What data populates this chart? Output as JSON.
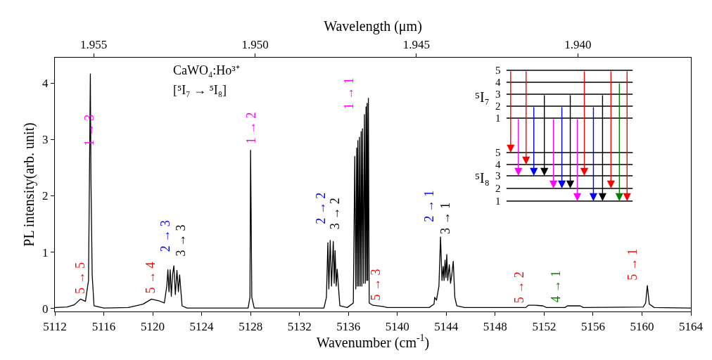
{
  "chart_data": {
    "type": "line",
    "xlabel": "Wavenumber (cm$^{-1}$)",
    "ylabel": "PL intensity(arb. unit)",
    "x2label": "Wavelength (μm)",
    "xlim": [
      5112,
      5164
    ],
    "xticks": [
      5112,
      5116,
      5120,
      5124,
      5128,
      5132,
      5136,
      5140,
      5144,
      5148,
      5152,
      5156,
      5160,
      5164
    ],
    "ylim": [
      -0.05,
      4.45
    ],
    "yticks": [
      0,
      1,
      2,
      3,
      4
    ],
    "x2lim": [
      1.9562,
      1.9365
    ],
    "x2ticks": [
      {
        "value": 1.955,
        "label": "1.955"
      },
      {
        "value": 1.95,
        "label": "1.950"
      },
      {
        "value": 1.945,
        "label": "1.945"
      },
      {
        "value": 1.94,
        "label": "1.940"
      }
    ],
    "marker": "none",
    "line_style": "solid",
    "series": [
      {
        "color": "#000000",
        "x": [
          5112,
          5113,
          5113.6,
          5114.1,
          5114.5,
          5114.75,
          5114.85,
          5114.9,
          5114.95,
          5115.05,
          5115.2,
          5116,
          5118,
          5119.2,
          5119.9,
          5120.5,
          5120.95,
          5121.15,
          5121.24,
          5121.33,
          5121.43,
          5121.52,
          5121.62,
          5121.73,
          5121.85,
          5121.98,
          5122.1,
          5122.2,
          5122.4,
          5122.8,
          5127.8,
          5127.95,
          5128.0,
          5128.05,
          5128.1,
          5128.3,
          5134.0,
          5134.2,
          5134.32,
          5134.4,
          5134.51,
          5134.62,
          5134.76,
          5134.84,
          5134.91,
          5135.0,
          5135.08,
          5135.3,
          5135.9,
          5136.4,
          5136.52,
          5136.6,
          5136.68,
          5136.72,
          5136.77,
          5136.84,
          5136.9,
          5136.97,
          5137.04,
          5137.1,
          5137.15,
          5137.23,
          5137.31,
          5137.38,
          5137.44,
          5137.49,
          5137.53,
          5137.58,
          5137.63,
          5137.7,
          5138.0,
          5138.8,
          5139.2,
          5142.6,
          5143.0,
          5143.05,
          5143.2,
          5143.4,
          5143.53,
          5143.65,
          5143.75,
          5143.82,
          5143.9,
          5143.97,
          5144.04,
          5144.12,
          5144.25,
          5144.35,
          5144.45,
          5144.57,
          5144.7,
          5144.86,
          5145.5,
          5150.5,
          5150.7,
          5151.3,
          5151.9,
          5152.2,
          5153.7,
          5153.9,
          5154.95,
          5155.2,
          5160.1,
          5160.3,
          5160.44,
          5160.6,
          5161,
          5164
        ],
        "values": [
          0.02,
          0.03,
          0.07,
          0.17,
          0.13,
          0.5,
          2.9,
          4.16,
          2.3,
          0.6,
          0.05,
          0.01,
          0.02,
          0.08,
          0.17,
          0.14,
          0.1,
          0.4,
          0.69,
          0.3,
          0.69,
          0.22,
          0.6,
          0.76,
          0.25,
          0.68,
          0.3,
          0.6,
          0.05,
          0.01,
          0.01,
          0.2,
          2.81,
          1.6,
          0.2,
          0.01,
          0.01,
          0.2,
          1.17,
          0.35,
          1.21,
          0.4,
          1.19,
          0.45,
          1.03,
          0.4,
          0.7,
          0.05,
          0.02,
          0.1,
          2.7,
          0.35,
          2.85,
          0.4,
          2.98,
          0.4,
          3.04,
          0.4,
          3.14,
          0.4,
          3.19,
          0.45,
          3.44,
          0.45,
          3.58,
          0.5,
          3.64,
          0.5,
          3.73,
          0.1,
          0.06,
          0.04,
          0.02,
          0.02,
          0.08,
          0.2,
          0.15,
          0.4,
          1.27,
          0.5,
          0.75,
          0.5,
          0.86,
          0.55,
          0.96,
          0.5,
          0.78,
          0.45,
          0.6,
          0.84,
          0.2,
          0.05,
          0.02,
          0.02,
          0.06,
          0.06,
          0.05,
          0.02,
          0.02,
          0.05,
          0.05,
          0.02,
          0.03,
          0.1,
          0.41,
          0.08,
          0.02,
          0.01
        ]
      }
    ],
    "annotations": [
      "CaWO₄:Ho³⁺",
      "[⁵I₇ → ⁵I₈]",
      "5",
      "4",
      "3",
      "2",
      "1",
      "5",
      "4",
      "3",
      "2",
      "1",
      "⁵I₇",
      "⁵I₈",
      "5 → 5",
      "1 → 3",
      "5 → 4",
      "2 → 3",
      "3 → 3",
      "1 → 2",
      "2 → 2",
      "3 → 2",
      "1 → 1",
      "5 → 3",
      "2 → 1",
      "3 → 1",
      "5 → 2",
      "4 → 1",
      "5 → 1"
    ]
  }
}
